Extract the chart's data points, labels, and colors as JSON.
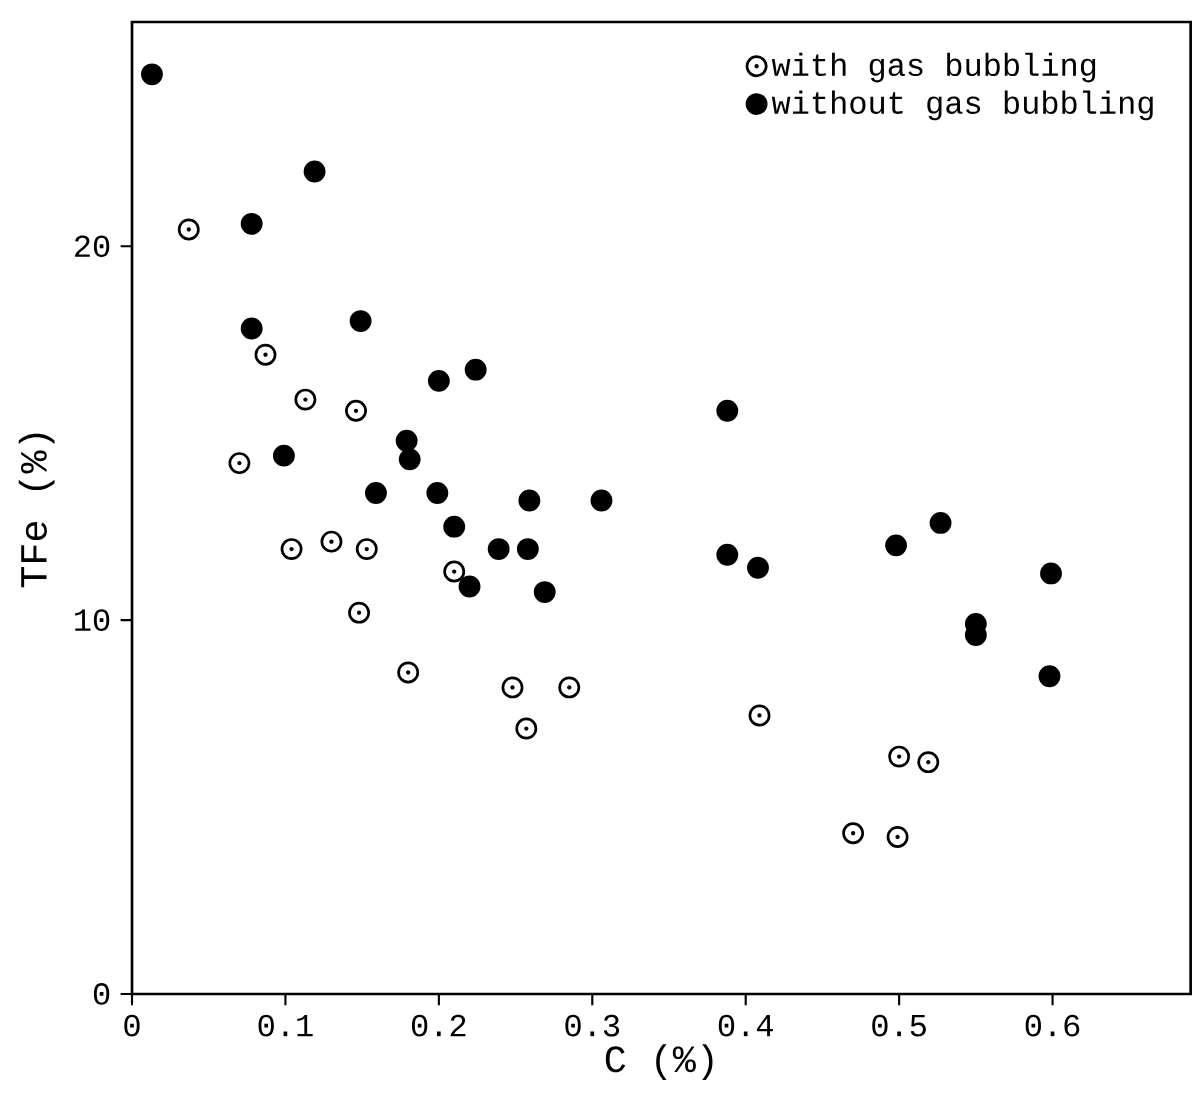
{
  "chart_data": {
    "type": "scatter",
    "xlabel": "C (%)",
    "ylabel": "TFe (%)",
    "xlim": [
      0,
      0.69
    ],
    "ylim": [
      0,
      26
    ],
    "xticks": [
      0,
      0.1,
      0.2,
      0.3,
      0.4,
      0.5,
      0.6
    ],
    "yticks": [
      0,
      10,
      20
    ],
    "grid": false,
    "legend": "top right",
    "marker": "circle",
    "series": [
      {
        "name": "with gas bubbling",
        "color": "#000000",
        "x": [
          0.037,
          0.087,
          0.113,
          0.146,
          0.07,
          0.104,
          0.13,
          0.153,
          0.21,
          0.148,
          0.18,
          0.248,
          0.257,
          0.285,
          0.409,
          0.5,
          0.519,
          0.47,
          0.499
        ],
        "values": [
          20.45,
          17.1,
          15.9,
          15.6,
          14.2,
          11.9,
          12.1,
          11.9,
          11.3,
          10.2,
          8.6,
          8.2,
          7.1,
          8.2,
          7.45,
          6.35,
          6.2,
          4.3,
          4.2
        ]
      },
      {
        "name": "without gas bubbling",
        "color": "#000000",
        "x": [
          0.013,
          0.119,
          0.078,
          0.078,
          0.149,
          0.099,
          0.2,
          0.224,
          0.179,
          0.181,
          0.159,
          0.199,
          0.21,
          0.259,
          0.239,
          0.258,
          0.22,
          0.269,
          0.306,
          0.388,
          0.388,
          0.408,
          0.498,
          0.527,
          0.599,
          0.55,
          0.55,
          0.598
        ],
        "values": [
          24.6,
          22.0,
          20.6,
          17.8,
          18.0,
          14.4,
          16.4,
          16.7,
          14.8,
          14.3,
          13.4,
          13.4,
          12.5,
          13.2,
          11.9,
          11.9,
          10.9,
          10.75,
          13.2,
          15.6,
          11.75,
          11.4,
          12.0,
          12.6,
          11.25,
          9.9,
          9.6,
          8.5
        ]
      }
    ]
  }
}
